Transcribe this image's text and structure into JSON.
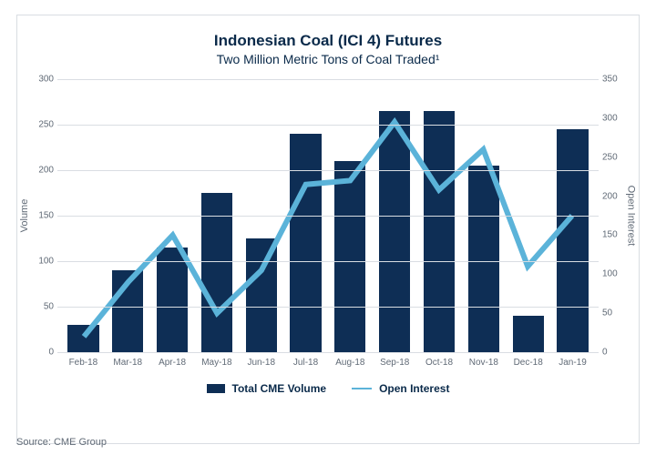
{
  "chart": {
    "type": "bar+line",
    "title": "Indonesian Coal (ICI 4) Futures",
    "subtitle": "Two Million Metric Tons of Coal Traded¹",
    "title_fontsize": 17,
    "subtitle_fontsize": 14,
    "title_color": "#0a2a4a",
    "background_color": "#ffffff",
    "panel_border_color": "#d9dde2",
    "grid_color": "#d9dde2",
    "label_color": "#606a76",
    "categories": [
      "Feb-18",
      "Mar-18",
      "Apr-18",
      "May-18",
      "Jun-18",
      "Jul-18",
      "Aug-18",
      "Sep-18",
      "Oct-18",
      "Nov-18",
      "Dec-18",
      "Jan-19"
    ],
    "bars": {
      "label": "Total CME Volume",
      "color": "#0e2e55",
      "values": [
        30,
        90,
        115,
        175,
        125,
        240,
        210,
        265,
        265,
        205,
        40,
        245
      ],
      "axis": "left",
      "bar_width": 0.7
    },
    "line": {
      "label": "Open Interest",
      "color": "#5bb3d9",
      "values": [
        20,
        90,
        150,
        50,
        105,
        215,
        220,
        295,
        208,
        260,
        110,
        175
      ],
      "axis": "right",
      "stroke_width": 2
    },
    "left_axis": {
      "label": "Volume",
      "min": 0,
      "max": 300,
      "tick_step": 50,
      "label_fontsize": 11,
      "tick_fontsize": 10
    },
    "right_axis": {
      "label": "Open Interest",
      "min": 0,
      "max": 350,
      "tick_step": 50,
      "label_fontsize": 11,
      "tick_fontsize": 10
    },
    "x_axis": {
      "tick_fontsize": 10
    },
    "legend": {
      "fontsize": 12,
      "color": "#0a2a4a"
    }
  },
  "source_label": "Source: CME Group"
}
